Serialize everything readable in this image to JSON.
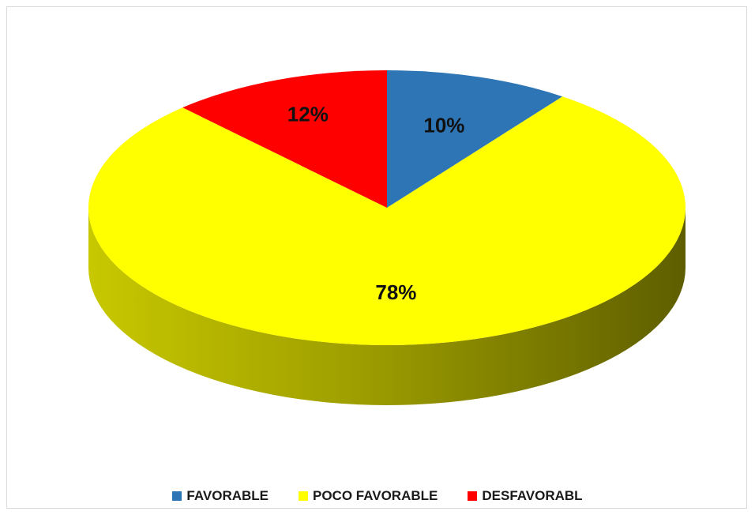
{
  "chart_data": {
    "type": "pie",
    "title": "",
    "categories": [
      "FAVORABLE",
      "POCO FAVORABLE",
      "DESFAVORABL"
    ],
    "values": [
      10,
      78,
      12
    ],
    "labels": [
      "10%",
      "78%",
      "12%"
    ],
    "colors": [
      "#2e75b6",
      "#ffff00",
      "#ff0000"
    ],
    "side_colors": [
      "#1f4f7a",
      "#807f00",
      "#a00000"
    ],
    "style": "3d",
    "legend_position": "bottom"
  },
  "legend": {
    "items": [
      {
        "label": "FAVORABLE",
        "color": "#2e75b6"
      },
      {
        "label": "POCO FAVORABLE",
        "color": "#ffff00"
      },
      {
        "label": "DESFAVORABL",
        "color": "#ff0000"
      }
    ]
  }
}
